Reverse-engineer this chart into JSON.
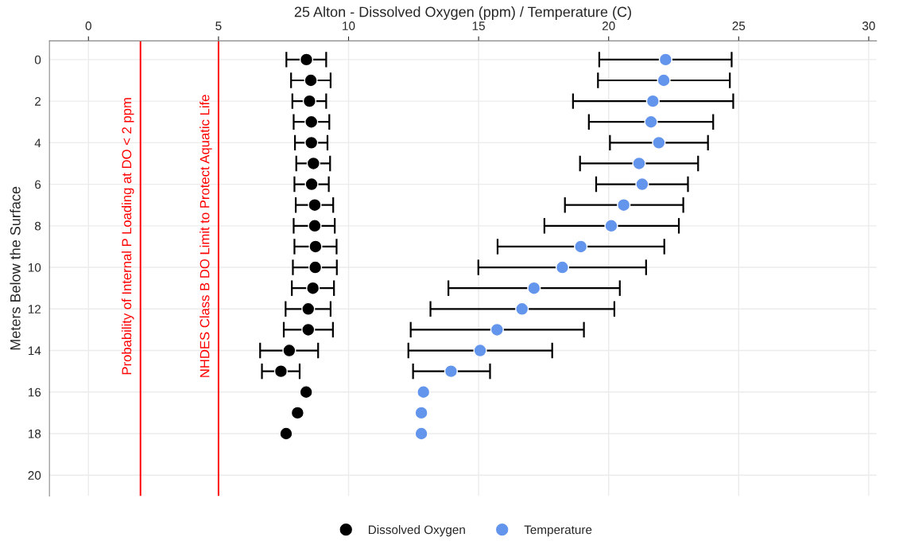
{
  "chart_data": {
    "type": "scatter",
    "xlabel": "25 Alton - Dissolved Oxygen (ppm) / Temperature (C)",
    "ylabel": "Meters Below the Surface",
    "xlim": [
      -1.5,
      30.3
    ],
    "xticks": [
      0,
      5,
      10,
      15,
      20,
      25,
      30
    ],
    "ylim": [
      21,
      -0.9
    ],
    "yticks": [
      0,
      2,
      4,
      6,
      8,
      10,
      12,
      14,
      16,
      18,
      20
    ],
    "grid": true,
    "legend": "bottom",
    "marker": "circle",
    "ref_lines": [
      {
        "axis": "x",
        "value": 2,
        "label": "Probability of Internal P Loading at DO < 2 ppm",
        "color": "#ff0000"
      },
      {
        "axis": "x",
        "value": 5,
        "label": "NHDES Class B DO Limit to Protect Aquatic Life",
        "color": "#ff0000"
      }
    ],
    "series": [
      {
        "name": "Dissolved Oxygen",
        "color": "#000000",
        "values": [
          0,
          1,
          2,
          3,
          4,
          5,
          6,
          7,
          8,
          9,
          10,
          11,
          12,
          13,
          14,
          15,
          16,
          17,
          18
        ],
        "x": [
          8.38,
          8.55,
          8.5,
          8.57,
          8.57,
          8.65,
          8.58,
          8.7,
          8.7,
          8.73,
          8.72,
          8.63,
          8.45,
          8.45,
          7.72,
          7.4,
          8.37,
          8.04,
          7.6
        ],
        "xerrors": [
          [
            7.61,
            9.14
          ],
          [
            7.79,
            9.31
          ],
          [
            7.84,
            9.14
          ],
          [
            7.89,
            9.26
          ],
          [
            7.94,
            9.19
          ],
          [
            7.99,
            9.29
          ],
          [
            7.92,
            9.24
          ],
          [
            7.97,
            9.41
          ],
          [
            7.89,
            9.47
          ],
          [
            7.92,
            9.54
          ],
          [
            7.86,
            9.55
          ],
          [
            7.82,
            9.44
          ],
          [
            7.58,
            9.31
          ],
          [
            7.51,
            9.4
          ],
          [
            6.6,
            8.83
          ],
          [
            6.67,
            8.12
          ],
          null,
          null,
          null
        ]
      },
      {
        "name": "Temperature",
        "color": "#6495ed",
        "values": [
          0,
          1,
          2,
          3,
          4,
          5,
          6,
          7,
          8,
          9,
          10,
          11,
          12,
          13,
          14,
          15,
          16,
          17,
          18
        ],
        "x": [
          22.19,
          22.12,
          21.7,
          21.63,
          21.93,
          21.17,
          21.29,
          20.58,
          20.1,
          18.93,
          18.22,
          17.13,
          16.67,
          15.71,
          15.06,
          13.94,
          12.88,
          12.8,
          12.8
        ],
        "xerrors": [
          [
            19.64,
            24.73
          ],
          [
            19.59,
            24.66
          ],
          [
            18.63,
            24.79
          ],
          [
            19.24,
            24.02
          ],
          [
            20.05,
            23.82
          ],
          [
            18.9,
            23.44
          ],
          [
            19.52,
            23.05
          ],
          [
            18.32,
            22.87
          ],
          [
            17.53,
            22.7
          ],
          [
            15.73,
            22.14
          ],
          [
            14.99,
            21.44
          ],
          [
            13.84,
            20.43
          ],
          [
            13.15,
            20.22
          ],
          [
            12.39,
            19.05
          ],
          [
            12.3,
            17.83
          ],
          [
            12.48,
            15.44
          ],
          null,
          null,
          null
        ]
      }
    ]
  }
}
